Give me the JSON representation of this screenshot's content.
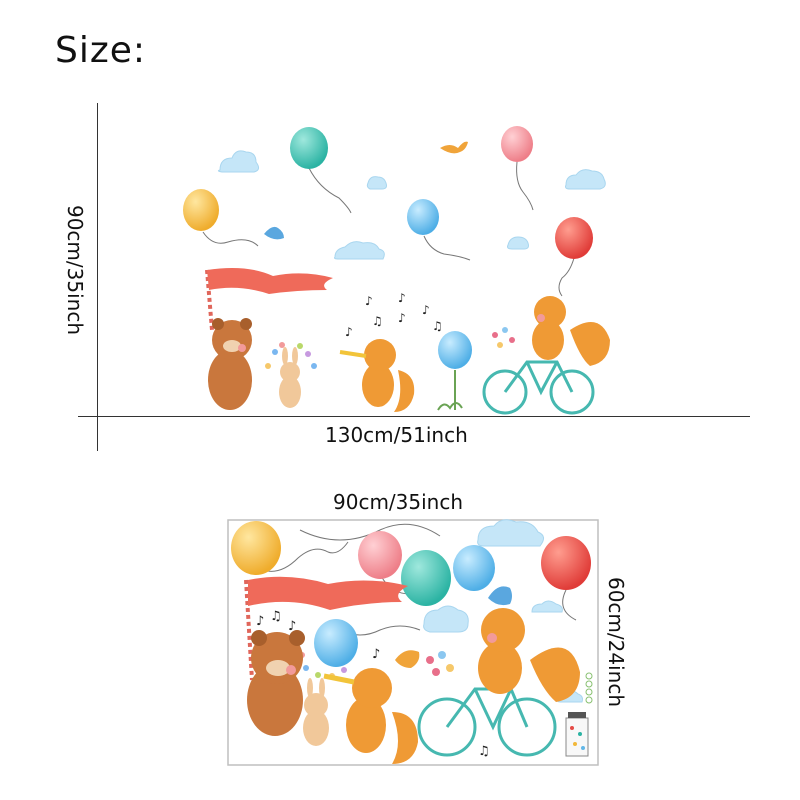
{
  "heading": "Size:",
  "installed": {
    "width_label": "130cm/51inch",
    "height_label": "90cm/35inch"
  },
  "sheet": {
    "width_label": "90cm/35inch",
    "height_label": "60cm/24inch"
  },
  "colors": {
    "balloon_teal": "#2bb3a3",
    "balloon_red": "#e54b46",
    "balloon_pink": "#f08a92",
    "balloon_yellow": "#f2b83a",
    "balloon_blue": "#62b7e8",
    "cloud": "#bfe3f7",
    "bear": "#c9773d",
    "fox": "#ef9a35",
    "flag": "#ef6a5a",
    "bike": "#46b8b0"
  }
}
